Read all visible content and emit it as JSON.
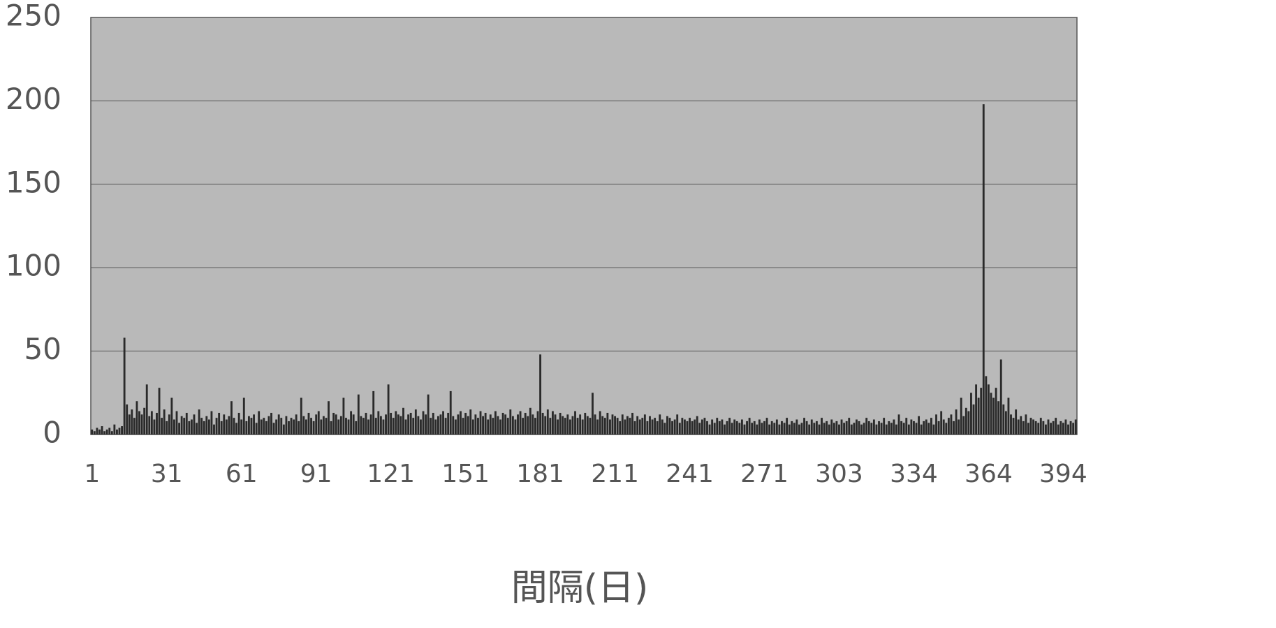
{
  "chart_data": {
    "type": "bar",
    "x_label": "間隔(日)",
    "categories": [
      "1",
      null,
      null,
      null,
      null,
      null,
      null,
      null,
      null,
      null,
      null,
      null,
      null,
      null,
      null,
      null,
      null,
      null,
      null,
      null,
      null,
      null,
      null,
      null,
      null,
      null,
      null,
      null,
      null,
      null,
      "31",
      null,
      null,
      null,
      null,
      null,
      null,
      null,
      null,
      null,
      null,
      null,
      null,
      null,
      null,
      null,
      null,
      null,
      null,
      null,
      null,
      null,
      null,
      null,
      null,
      null,
      null,
      null,
      null,
      null,
      "61",
      null,
      null,
      null,
      null,
      null,
      null,
      null,
      null,
      null,
      null,
      null,
      null,
      null,
      null,
      null,
      null,
      null,
      null,
      null,
      null,
      null,
      null,
      null,
      null,
      null,
      null,
      null,
      null,
      null,
      "91",
      null,
      null,
      null,
      null,
      null,
      null,
      null,
      null,
      null,
      null,
      null,
      null,
      null,
      null,
      null,
      null,
      null,
      null,
      null,
      null,
      null,
      null,
      null,
      null,
      null,
      null,
      null,
      null,
      null,
      "121",
      null,
      null,
      null,
      null,
      null,
      null,
      null,
      null,
      null,
      null,
      null,
      null,
      null,
      null,
      null,
      null,
      null,
      null,
      null,
      null,
      null,
      null,
      null,
      null,
      null,
      null,
      null,
      null,
      null,
      "151",
      null,
      null,
      null,
      null,
      null,
      null,
      null,
      null,
      null,
      null,
      null,
      null,
      null,
      null,
      null,
      null,
      null,
      null,
      null,
      null,
      null,
      null,
      null,
      null,
      null,
      null,
      null,
      null,
      null,
      "181",
      null,
      null,
      null,
      null,
      null,
      null,
      null,
      null,
      null,
      null,
      null,
      null,
      null,
      null,
      null,
      null,
      null,
      null,
      null,
      null,
      null,
      null,
      null,
      null,
      null,
      null,
      null,
      null,
      null,
      "211",
      null,
      null,
      null,
      null,
      null,
      null,
      null,
      null,
      null,
      null,
      null,
      null,
      null,
      null,
      null,
      null,
      null,
      null,
      null,
      null,
      null,
      null,
      null,
      null,
      null,
      null,
      null,
      null,
      null,
      "241",
      null,
      null,
      null,
      null,
      null,
      null,
      null,
      null,
      null,
      null,
      null,
      null,
      null,
      null,
      null,
      null,
      null,
      null,
      null,
      null,
      null,
      null,
      null,
      null,
      null,
      null,
      null,
      null,
      null,
      "271",
      null,
      null,
      null,
      null,
      null,
      null,
      null,
      null,
      null,
      null,
      null,
      null,
      null,
      null,
      null,
      null,
      null,
      null,
      null,
      null,
      null,
      null,
      null,
      null,
      null,
      null,
      null,
      null,
      null,
      "303",
      null,
      null,
      null,
      null,
      null,
      null,
      null,
      null,
      null,
      null,
      null,
      null,
      null,
      null,
      null,
      null,
      null,
      null,
      null,
      null,
      null,
      null,
      null,
      null,
      null,
      null,
      null,
      null,
      null,
      "334",
      null,
      null,
      null,
      null,
      null,
      null,
      null,
      null,
      null,
      null,
      null,
      null,
      null,
      null,
      null,
      null,
      null,
      null,
      null,
      null,
      null,
      null,
      null,
      null,
      null,
      null,
      null,
      null,
      null,
      "364",
      null,
      null,
      null,
      null,
      null,
      null,
      null,
      null,
      null,
      null,
      null,
      null,
      null,
      null,
      null,
      null,
      null,
      null,
      null,
      null,
      null,
      null,
      null,
      null,
      null,
      null,
      null,
      null,
      null,
      "394",
      null,
      null,
      null,
      null,
      null
    ],
    "values": [
      3,
      2,
      4,
      3,
      5,
      2,
      3,
      4,
      2,
      6,
      3,
      4,
      5,
      58,
      18,
      12,
      15,
      10,
      20,
      14,
      12,
      16,
      30,
      11,
      14,
      9,
      13,
      28,
      10,
      15,
      8,
      12,
      22,
      9,
      14,
      7,
      11,
      10,
      13,
      8,
      9,
      12,
      7,
      15,
      10,
      8,
      11,
      9,
      14,
      6,
      10,
      13,
      8,
      12,
      9,
      11,
      20,
      10,
      7,
      13,
      9,
      22,
      8,
      11,
      10,
      12,
      7,
      14,
      9,
      10,
      8,
      11,
      13,
      7,
      9,
      12,
      10,
      6,
      11,
      8,
      10,
      9,
      12,
      8,
      22,
      11,
      9,
      13,
      10,
      8,
      12,
      14,
      9,
      11,
      10,
      20,
      8,
      13,
      12,
      9,
      11,
      22,
      10,
      9,
      14,
      12,
      8,
      24,
      11,
      10,
      13,
      9,
      12,
      26,
      10,
      14,
      11,
      9,
      12,
      30,
      13,
      10,
      14,
      12,
      11,
      16,
      9,
      12,
      13,
      10,
      15,
      11,
      9,
      14,
      12,
      24,
      10,
      13,
      9,
      11,
      12,
      14,
      10,
      13,
      26,
      11,
      9,
      12,
      14,
      10,
      13,
      11,
      15,
      9,
      12,
      10,
      14,
      11,
      13,
      9,
      12,
      10,
      14,
      11,
      9,
      13,
      12,
      10,
      15,
      11,
      9,
      12,
      14,
      10,
      13,
      11,
      16,
      12,
      10,
      14,
      48,
      13,
      11,
      15,
      10,
      14,
      12,
      9,
      13,
      11,
      10,
      12,
      9,
      11,
      14,
      10,
      12,
      9,
      13,
      11,
      10,
      25,
      12,
      9,
      14,
      11,
      10,
      13,
      9,
      12,
      11,
      10,
      8,
      12,
      9,
      11,
      10,
      13,
      8,
      11,
      9,
      10,
      12,
      8,
      11,
      9,
      10,
      8,
      12,
      9,
      7,
      11,
      10,
      8,
      9,
      12,
      7,
      10,
      9,
      8,
      10,
      8,
      9,
      11,
      7,
      9,
      10,
      8,
      6,
      9,
      7,
      10,
      8,
      9,
      6,
      8,
      10,
      7,
      9,
      8,
      7,
      9,
      6,
      8,
      10,
      7,
      8,
      6,
      9,
      7,
      8,
      10,
      6,
      8,
      7,
      9,
      6,
      8,
      7,
      10,
      6,
      8,
      7,
      9,
      6,
      7,
      10,
      8,
      6,
      9,
      7,
      8,
      6,
      10,
      7,
      8,
      6,
      9,
      7,
      8,
      6,
      9,
      7,
      8,
      10,
      6,
      7,
      9,
      8,
      6,
      7,
      10,
      8,
      7,
      9,
      6,
      8,
      7,
      10,
      6,
      8,
      7,
      9,
      6,
      12,
      8,
      7,
      10,
      6,
      9,
      8,
      7,
      11,
      6,
      8,
      9,
      7,
      10,
      6,
      12,
      8,
      14,
      9,
      7,
      10,
      12,
      8,
      15,
      9,
      22,
      11,
      16,
      14,
      25,
      18,
      30,
      22,
      28,
      198,
      35,
      30,
      25,
      22,
      28,
      20,
      45,
      18,
      14,
      22,
      12,
      10,
      15,
      9,
      11,
      8,
      12,
      7,
      10,
      9,
      8,
      7,
      10,
      8,
      6,
      9,
      7,
      8,
      10,
      6,
      8,
      7,
      9,
      6,
      8,
      7,
      9
    ],
    "color": "#2a2a2a",
    "ylim": [
      0,
      250
    ],
    "yticks": [
      0,
      50,
      100,
      150,
      200,
      250
    ],
    "grid": true
  }
}
